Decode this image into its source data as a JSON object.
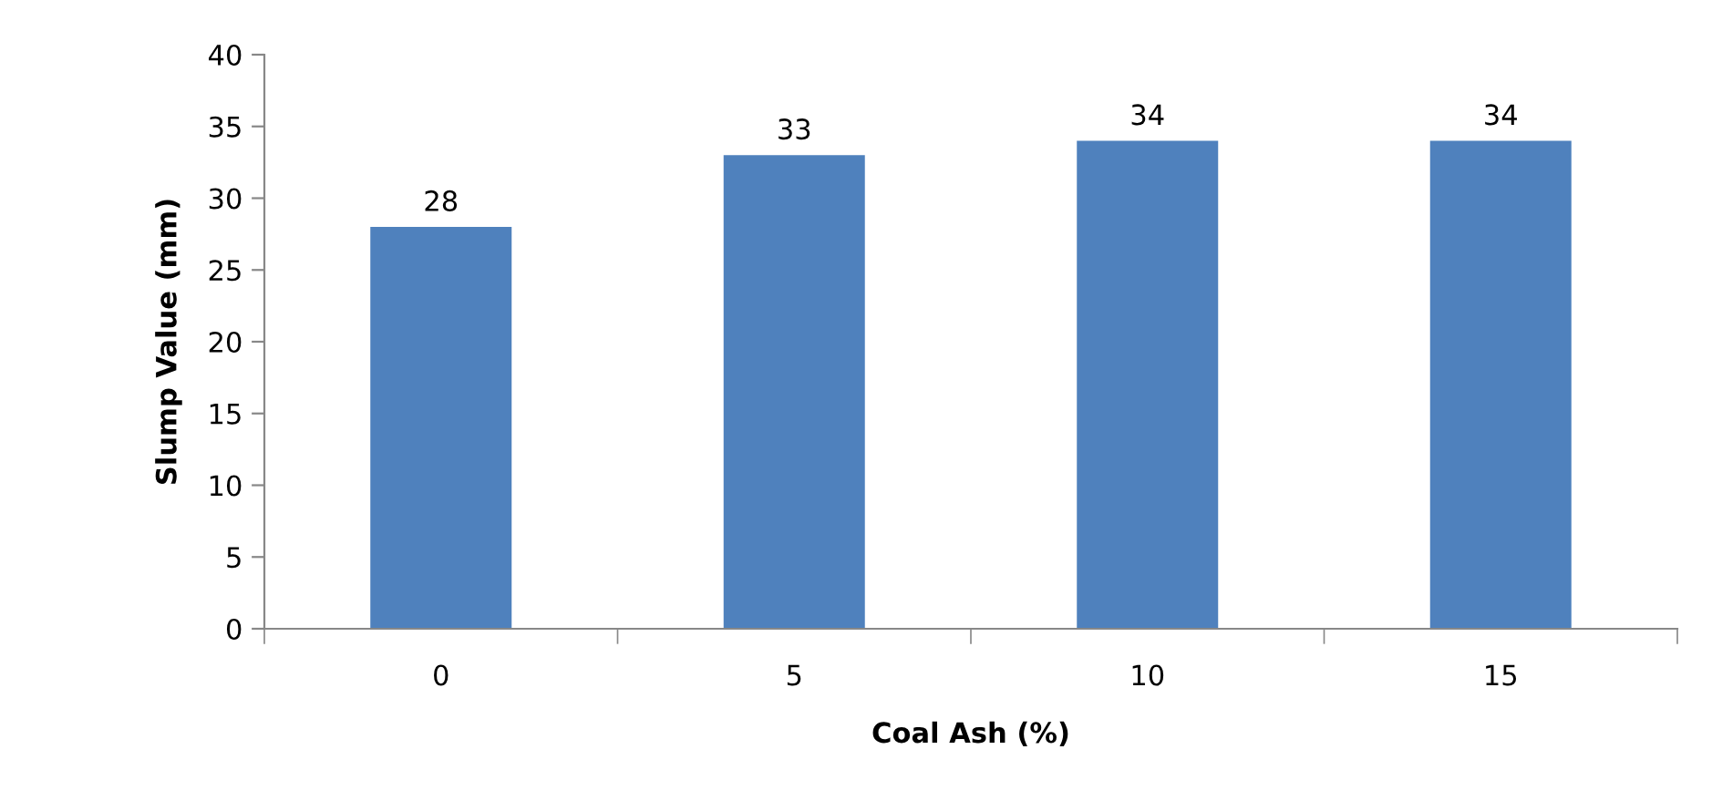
{
  "chart_data": {
    "type": "bar",
    "xlabel": "Coal Ash (%)",
    "ylabel": "Slump Value (mm)",
    "categories": [
      "0",
      "5",
      "10",
      "15"
    ],
    "values": [
      28,
      33,
      34,
      34
    ],
    "color": "#4f81bd",
    "ylim": [
      0,
      40
    ],
    "yticks": [
      0,
      5,
      10,
      15,
      20,
      25,
      30,
      35,
      40
    ],
    "grid": false,
    "data_labels": true
  }
}
